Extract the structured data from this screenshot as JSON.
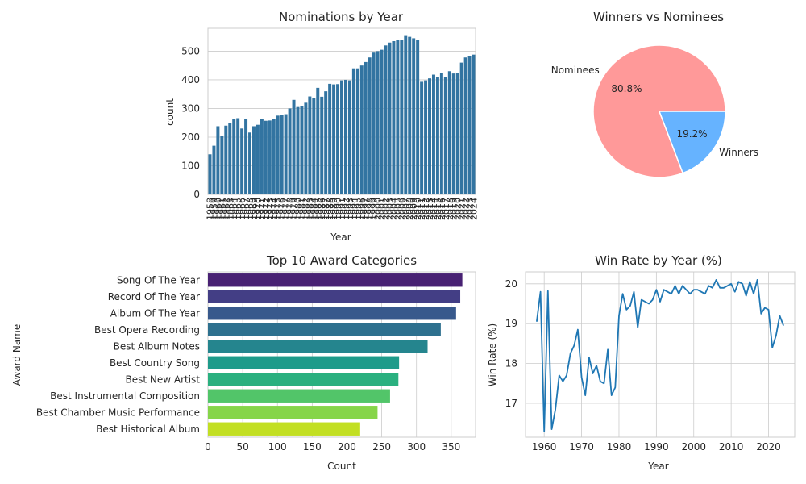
{
  "chart_data": [
    {
      "type": "bar",
      "title": "Nominations by Year",
      "xlabel": "Year",
      "ylabel": "count",
      "ylim": [
        0,
        580
      ],
      "yticks": [
        0,
        100,
        200,
        300,
        400,
        500
      ],
      "grid": true,
      "categories": [
        1958,
        1959,
        1960,
        1961,
        1962,
        1963,
        1964,
        1965,
        1966,
        1967,
        1968,
        1969,
        1970,
        1971,
        1972,
        1973,
        1974,
        1975,
        1976,
        1977,
        1978,
        1979,
        1980,
        1981,
        1982,
        1983,
        1984,
        1985,
        1986,
        1987,
        1988,
        1989,
        1990,
        1991,
        1992,
        1993,
        1994,
        1995,
        1996,
        1997,
        1998,
        1999,
        2000,
        2001,
        2002,
        2003,
        2004,
        2005,
        2006,
        2007,
        2008,
        2009,
        2010,
        2011,
        2012,
        2013,
        2014,
        2015,
        2016,
        2017,
        2018,
        2019,
        2020,
        2021,
        2022,
        2023,
        2024
      ],
      "values": [
        140,
        170,
        238,
        203,
        240,
        250,
        263,
        266,
        230,
        262,
        216,
        238,
        243,
        262,
        257,
        258,
        262,
        275,
        278,
        280,
        300,
        330,
        305,
        308,
        320,
        342,
        336,
        372,
        341,
        360,
        386,
        384,
        385,
        398,
        400,
        398,
        440,
        440,
        450,
        462,
        478,
        495,
        500,
        505,
        520,
        530,
        535,
        540,
        538,
        553,
        550,
        545,
        540,
        393,
        398,
        405,
        418,
        410,
        425,
        411,
        430,
        422,
        425,
        460,
        478,
        482,
        488
      ]
    },
    {
      "type": "pie",
      "title": "Winners vs Nominees",
      "labels": [
        "Nominees",
        "Winners"
      ],
      "values": [
        80.8,
        19.2
      ],
      "value_labels": [
        "80.8%",
        "19.2%"
      ],
      "colors": [
        "#ff9999",
        "#66b3ff"
      ]
    },
    {
      "type": "bar",
      "orientation": "horizontal",
      "title": "Top 10 Award Categories",
      "xlabel": "Count",
      "ylabel": "Award Name",
      "xlim": [
        0,
        385
      ],
      "xticks": [
        0,
        50,
        100,
        150,
        200,
        250,
        300,
        350
      ],
      "categories": [
        "Song Of The Year",
        "Record Of The Year",
        "Album Of The Year",
        "Best Opera Recording",
        "Best Album Notes",
        "Best Country Song",
        "Best New Artist",
        "Best Instrumental Composition",
        "Best Chamber Music Performance",
        "Best Historical Album"
      ],
      "values": [
        366,
        363,
        357,
        335,
        316,
        275,
        274,
        262,
        244,
        219
      ],
      "colors": [
        "#482173",
        "#433e85",
        "#38598c",
        "#2d708e",
        "#25858e",
        "#1e9b8a",
        "#2ab07f",
        "#52c569",
        "#86d549",
        "#c2df23"
      ]
    },
    {
      "type": "line",
      "title": "Win Rate by Year (%)",
      "xlabel": "Year",
      "ylabel": "Win Rate (%)",
      "xlim": [
        1955,
        2027
      ],
      "ylim": [
        16.15,
        20.3
      ],
      "xticks": [
        1960,
        1970,
        1980,
        1990,
        2000,
        2010,
        2020
      ],
      "yticks": [
        17,
        18,
        19,
        20
      ],
      "grid": true,
      "color": "#1f77b4",
      "x": [
        1958,
        1959,
        1960,
        1961,
        1962,
        1963,
        1964,
        1965,
        1966,
        1967,
        1968,
        1969,
        1970,
        1971,
        1972,
        1973,
        1974,
        1975,
        1976,
        1977,
        1978,
        1979,
        1980,
        1981,
        1982,
        1983,
        1984,
        1985,
        1986,
        1987,
        1988,
        1989,
        1990,
        1991,
        1992,
        1993,
        1994,
        1995,
        1996,
        1997,
        1998,
        1999,
        2000,
        2001,
        2002,
        2003,
        2004,
        2005,
        2006,
        2007,
        2008,
        2009,
        2010,
        2011,
        2012,
        2013,
        2014,
        2015,
        2016,
        2017,
        2018,
        2019,
        2020,
        2021,
        2022,
        2023,
        2024
      ],
      "y": [
        19.05,
        19.8,
        16.3,
        19.82,
        16.35,
        16.85,
        17.7,
        17.55,
        17.7,
        18.25,
        18.45,
        18.85,
        17.65,
        17.2,
        18.15,
        17.75,
        17.95,
        17.55,
        17.5,
        18.35,
        17.2,
        17.4,
        19.2,
        19.75,
        19.35,
        19.45,
        19.8,
        18.9,
        19.6,
        19.55,
        19.5,
        19.6,
        19.85,
        19.55,
        19.85,
        19.8,
        19.75,
        19.95,
        19.75,
        19.95,
        19.85,
        19.75,
        19.85,
        19.85,
        19.8,
        19.75,
        19.95,
        19.9,
        20.1,
        19.9,
        19.9,
        19.95,
        20.0,
        19.8,
        20.05,
        20.0,
        19.7,
        20.05,
        19.75,
        20.1,
        19.25,
        19.4,
        19.35,
        18.4,
        18.7,
        19.2,
        18.95
      ]
    }
  ]
}
